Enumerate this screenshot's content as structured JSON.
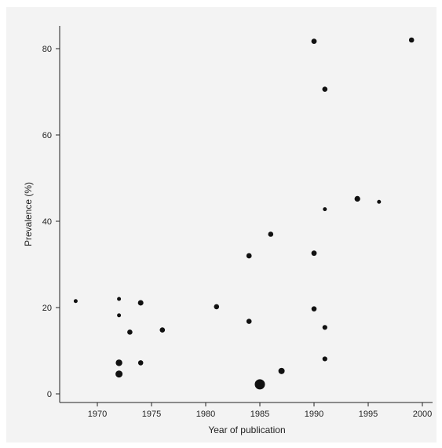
{
  "chart_data": {
    "type": "scatter",
    "title": "",
    "xlabel": "Year of publication",
    "ylabel": "Prevalence (%)",
    "xlim": [
      1966.5,
      2001
    ],
    "ylim": [
      -1,
      86
    ],
    "xticks": [
      1970,
      1975,
      1980,
      1985,
      1990,
      1995,
      2000
    ],
    "yticks": [
      0,
      20,
      40,
      60,
      80
    ],
    "grid": false,
    "legend": "none",
    "marker_color": "#111111",
    "background_color": "#f3f3f3",
    "points_note_size": "marker size reflects study sample size (relative)",
    "points": [
      {
        "x": 1968,
        "y": 21.5,
        "size": 2.5
      },
      {
        "x": 1972,
        "y": 22.0,
        "size": 2.5
      },
      {
        "x": 1972,
        "y": 18.2,
        "size": 2.5
      },
      {
        "x": 1972,
        "y": 7.2,
        "size": 4.2
      },
      {
        "x": 1972,
        "y": 4.6,
        "size": 4.5
      },
      {
        "x": 1973,
        "y": 14.3,
        "size": 3.3
      },
      {
        "x": 1974,
        "y": 21.1,
        "size": 3.5
      },
      {
        "x": 1974,
        "y": 7.2,
        "size": 3.3
      },
      {
        "x": 1976,
        "y": 14.8,
        "size": 3.3
      },
      {
        "x": 1981,
        "y": 20.2,
        "size": 3.3
      },
      {
        "x": 1984,
        "y": 32.0,
        "size": 3.4
      },
      {
        "x": 1984,
        "y": 16.8,
        "size": 3.3
      },
      {
        "x": 1985,
        "y": 2.2,
        "size": 6.5
      },
      {
        "x": 1986,
        "y": 37.0,
        "size": 3.3
      },
      {
        "x": 1987,
        "y": 5.3,
        "size": 4.0
      },
      {
        "x": 1990,
        "y": 81.7,
        "size": 3.4
      },
      {
        "x": 1990,
        "y": 32.6,
        "size": 3.4
      },
      {
        "x": 1990,
        "y": 19.7,
        "size": 3.3
      },
      {
        "x": 1991,
        "y": 70.6,
        "size": 3.3
      },
      {
        "x": 1991,
        "y": 42.8,
        "size": 2.5
      },
      {
        "x": 1991,
        "y": 15.4,
        "size": 3.1
      },
      {
        "x": 1991,
        "y": 8.1,
        "size": 3.1
      },
      {
        "x": 1994,
        "y": 45.2,
        "size": 3.6
      },
      {
        "x": 1996,
        "y": 44.5,
        "size": 2.5
      },
      {
        "x": 1999,
        "y": 82.0,
        "size": 3.3
      }
    ]
  }
}
